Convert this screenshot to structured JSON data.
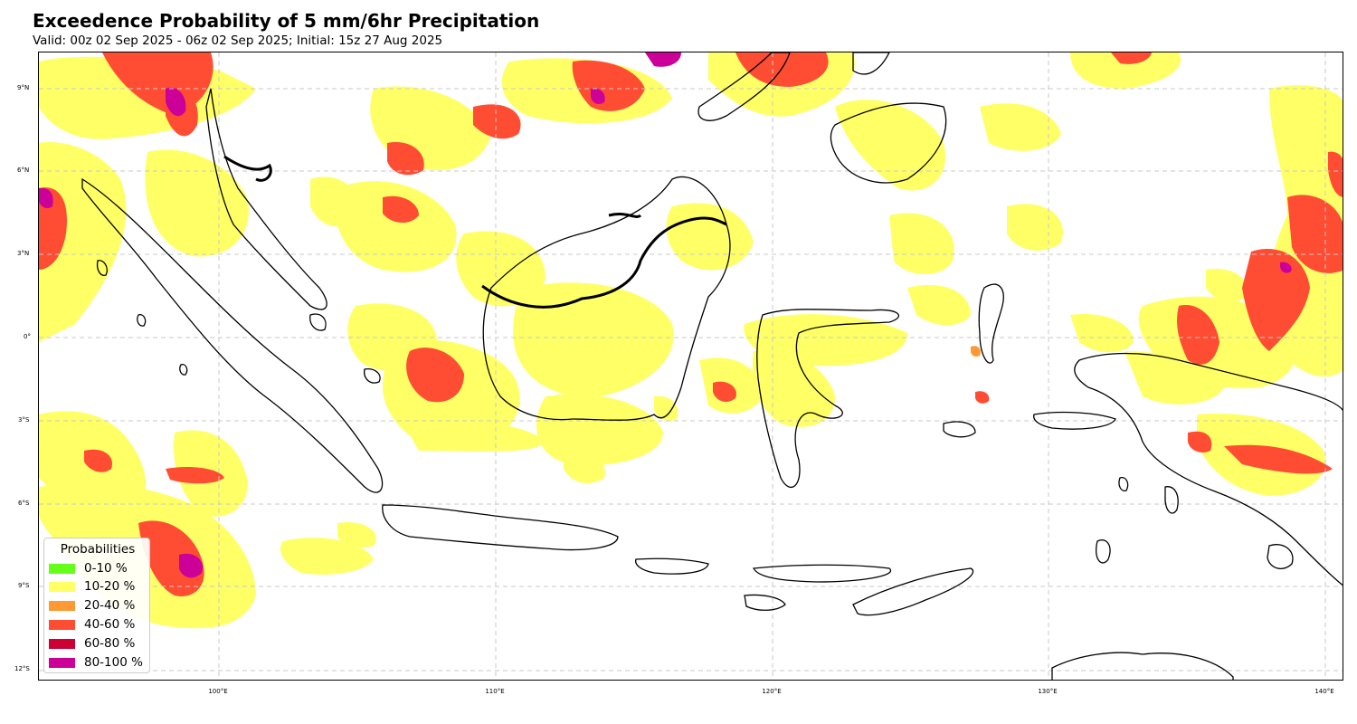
{
  "title": "Exceedence Probability of 5 mm/6hr Precipitation",
  "subtitle": "Valid: 00z 02 Sep 2025 - 06z 02 Sep 2025; Initial: 15z 27 Aug 2025",
  "map": {
    "region": "Indonesia",
    "lon_range": [
      93.5,
      140.7
    ],
    "lat_range": [
      -12.3,
      10.4
    ],
    "lon_ticks": [
      "100°E",
      "110°E",
      "120°E",
      "130°E",
      "140°E"
    ],
    "lat_ticks": [
      "9°N",
      "6°N",
      "3°N",
      "0°",
      "3°S",
      "6°S",
      "9°S",
      "12°S"
    ],
    "gridlines": true
  },
  "legend": {
    "title": "Probabilities",
    "placement": "lower-left",
    "items": [
      {
        "label": "0-10 %",
        "color": "#66ff19"
      },
      {
        "label": "10-20 %",
        "color": "#ffff66"
      },
      {
        "label": "20-40 %",
        "color": "#ff9933"
      },
      {
        "label": "40-60 %",
        "color": "#ff4d33"
      },
      {
        "label": "60-80 %",
        "color": "#cc0033"
      },
      {
        "label": "80-100 %",
        "color": "#cc0099"
      }
    ]
  }
}
